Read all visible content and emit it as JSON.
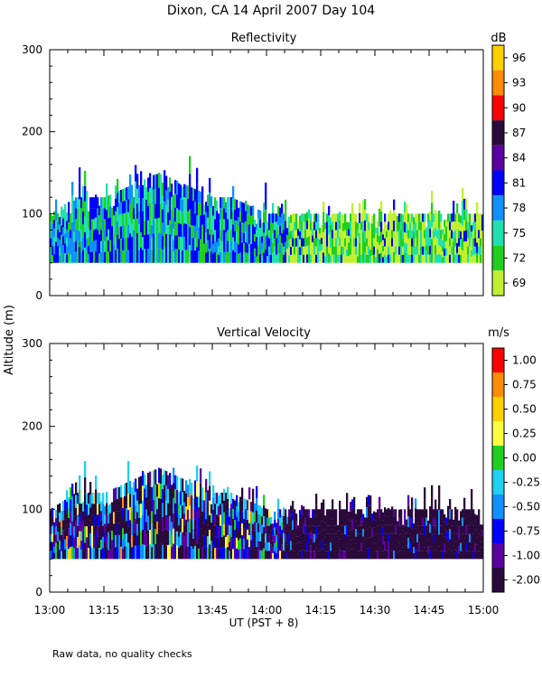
{
  "title": "Dixon, CA 14 April 2007  Day 104",
  "ylabel": "Altitude (m)",
  "xlabel": "UT  (PST + 8)",
  "footnote": "Raw data, no quality checks",
  "x_ticks": [
    "13:00",
    "13:15",
    "13:30",
    "13:45",
    "14:00",
    "14:15",
    "14:30",
    "14:45",
    "15:00"
  ],
  "y_ticks": [
    "0",
    "100",
    "200",
    "300"
  ],
  "chart_data": [
    {
      "type": "heatmap",
      "title": "Reflectivity",
      "xlim": [
        "13:00",
        "15:00"
      ],
      "ylim": [
        0,
        300
      ],
      "colorbar": {
        "unit": "dB",
        "ticks": [
          "96",
          "93",
          "90",
          "87",
          "84",
          "81",
          "78",
          "75",
          "72",
          "69"
        ],
        "colors": [
          "#ffd000",
          "#ff8c00",
          "#ff0000",
          "#2a0a3a",
          "#5a00a0",
          "#0000ff",
          "#1090ff",
          "#20e0b0",
          "#20d020",
          "#c0f030"
        ]
      },
      "profile": {
        "time_min": [
          0,
          7,
          10,
          15,
          20,
          25,
          30,
          35,
          40,
          45,
          50,
          55,
          60,
          65,
          70,
          75,
          80,
          85,
          90,
          95,
          100,
          105,
          110,
          115,
          120
        ],
        "base_m": [
          40,
          40,
          40,
          40,
          40,
          40,
          40,
          40,
          40,
          40,
          40,
          40,
          40,
          40,
          40,
          40,
          40,
          40,
          40,
          40,
          40,
          40,
          40,
          40,
          40
        ],
        "top_m": [
          100,
          120,
          120,
          120,
          130,
          140,
          150,
          140,
          130,
          120,
          120,
          110,
          100,
          100,
          100,
          100,
          100,
          100,
          100,
          100,
          100,
          100,
          100,
          100,
          100
        ],
        "max_echo_m": [
          120,
          160,
          160,
          140,
          160,
          160,
          160,
          160,
          180,
          140,
          140,
          140,
          140,
          120,
          120,
          120,
          120,
          120,
          120,
          120,
          120,
          140,
          120,
          140,
          100
        ]
      }
    },
    {
      "type": "heatmap",
      "title": "Vertical Velocity",
      "xlim": [
        "13:00",
        "15:00"
      ],
      "ylim": [
        0,
        300
      ],
      "colorbar": {
        "unit": "m/s",
        "ticks": [
          "1.00",
          "0.75",
          "0.50",
          "0.25",
          "0.00",
          "-0.25",
          "-0.50",
          "-0.75",
          "-1.00",
          "-2.00"
        ],
        "colors": [
          "#ff0000",
          "#ff8c00",
          "#ffd000",
          "#ffff40",
          "#20d020",
          "#20d0f0",
          "#1090ff",
          "#0000ff",
          "#5a00a0",
          "#2a0a3a"
        ]
      },
      "profile": {
        "time_min": [
          0,
          7,
          10,
          15,
          20,
          25,
          30,
          35,
          40,
          45,
          50,
          55,
          60,
          65,
          70,
          75,
          80,
          85,
          90,
          95,
          100,
          105,
          110,
          115,
          120
        ],
        "base_m": [
          40,
          40,
          40,
          40,
          40,
          40,
          40,
          40,
          40,
          40,
          40,
          40,
          40,
          40,
          40,
          40,
          40,
          40,
          40,
          40,
          40,
          40,
          40,
          40,
          40
        ],
        "top_m": [
          100,
          120,
          120,
          120,
          130,
          140,
          150,
          140,
          130,
          120,
          120,
          110,
          100,
          100,
          100,
          100,
          100,
          100,
          100,
          100,
          100,
          100,
          100,
          100,
          100
        ],
        "max_echo_m": [
          120,
          160,
          160,
          140,
          160,
          160,
          160,
          160,
          180,
          140,
          140,
          140,
          140,
          120,
          120,
          120,
          120,
          120,
          120,
          120,
          120,
          140,
          120,
          140,
          100
        ]
      }
    }
  ]
}
